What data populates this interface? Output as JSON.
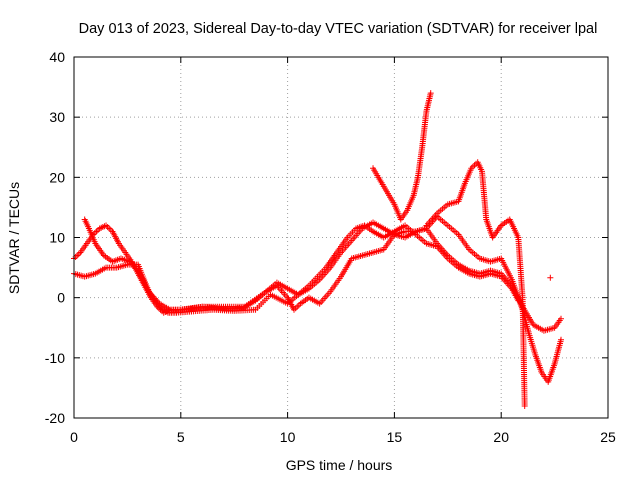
{
  "chart_data": {
    "type": "scatter",
    "title": "Day 013 of 2023, Sidereal Day-to-day VTEC variation (SDTVAR) for receiver lpal",
    "xlabel": "GPS time / hours",
    "ylabel": "SDTVAR / TECUs",
    "xlim": [
      0,
      25
    ],
    "ylim": [
      -20,
      40
    ],
    "x_ticks": [
      "0",
      "5",
      "10",
      "15",
      "20",
      "25"
    ],
    "y_ticks": [
      "-20",
      "-10",
      "0",
      "10",
      "20",
      "30",
      "40"
    ],
    "grid": true,
    "legend": "none",
    "marker": "plus",
    "color": "#ff0000",
    "series": [
      {
        "x": [
          0.0,
          0.3,
          0.6,
          0.9,
          1.2,
          1.5,
          1.8,
          2.1,
          2.4,
          2.7,
          3.0,
          3.3,
          3.6,
          3.9,
          4.2,
          4.5,
          5.0,
          5.5,
          6.0,
          6.5,
          7.0,
          7.5,
          8.0,
          8.5,
          9.0,
          9.5,
          10.0,
          10.5,
          11.0,
          11.5,
          12.0,
          12.5,
          13.0,
          13.5,
          14.0,
          14.5,
          15.0,
          15.5,
          16.0,
          16.5,
          17.0,
          17.5,
          18.0,
          18.5,
          19.0,
          19.5,
          20.0,
          20.5,
          21.0,
          21.3,
          21.6,
          21.9,
          22.2,
          22.5,
          22.8
        ],
        "y": [
          6.5,
          7.5,
          9.0,
          10.5,
          11.5,
          12.0,
          11.0,
          9.0,
          7.5,
          6.0,
          4.0,
          2.0,
          0.0,
          -1.5,
          -2.5,
          -2.0,
          -2.0,
          -1.8,
          -1.5,
          -1.7,
          -1.8,
          -1.9,
          -1.5,
          -0.5,
          1.0,
          2.5,
          1.5,
          0.5,
          1.5,
          3.0,
          5.0,
          7.5,
          9.5,
          11.5,
          12.5,
          11.5,
          10.5,
          10.0,
          11.0,
          11.5,
          13.5,
          12.0,
          10.5,
          8.0,
          6.5,
          6.0,
          6.5,
          3.0,
          -2.0,
          -6.0,
          -9.5,
          -12.5,
          -14.0,
          -11.0,
          -7.0
        ]
      },
      {
        "x": [
          0.0,
          0.5,
          1.0,
          1.5,
          2.0,
          2.5,
          3.0,
          3.5,
          4.0,
          4.5,
          5.0,
          6.0,
          7.0,
          8.0,
          9.0,
          9.5,
          10.0,
          10.3,
          10.6,
          11.0,
          11.5,
          12.0,
          12.5,
          13.0,
          13.5,
          14.0,
          14.5,
          15.0,
          15.5,
          16.0,
          16.5,
          17.0,
          17.5,
          18.0,
          18.5,
          19.0,
          19.5,
          20.0,
          20.5,
          21.0,
          21.5,
          22.0,
          22.5,
          22.8
        ],
        "y": [
          4.0,
          3.5,
          4.0,
          5.0,
          5.0,
          5.5,
          5.5,
          1.0,
          -1.0,
          -2.0,
          -2.0,
          -1.5,
          -1.5,
          -1.5,
          1.0,
          2.0,
          0.0,
          -2.0,
          -1.0,
          0.0,
          -1.0,
          1.0,
          3.5,
          6.5,
          7.0,
          7.5,
          8.0,
          10.5,
          11.0,
          11.0,
          11.5,
          9.0,
          7.0,
          5.5,
          4.5,
          4.0,
          4.5,
          4.0,
          2.0,
          -1.5,
          -4.5,
          -5.5,
          -5.0,
          -3.5
        ]
      },
      {
        "x": [
          0.5,
          0.7,
          1.0,
          1.4,
          1.8,
          2.2,
          2.6,
          3.0,
          3.3,
          3.6,
          4.0,
          4.4,
          4.8,
          5.5,
          6.5,
          7.5,
          8.5,
          9.2,
          10.0,
          10.5,
          11.0,
          11.4,
          11.8,
          12.2,
          12.5,
          12.8,
          13.2,
          13.6,
          14.0,
          14.5,
          15.0,
          15.5,
          16.0,
          16.5,
          17.0,
          17.5,
          18.0,
          18.5,
          19.0,
          19.5,
          20.0,
          20.5,
          20.8
        ],
        "y": [
          13.0,
          11.5,
          9.0,
          7.0,
          6.0,
          6.5,
          6.0,
          4.5,
          2.5,
          0.5,
          -1.5,
          -2.5,
          -2.5,
          -2.3,
          -2.0,
          -2.2,
          -2.0,
          0.5,
          -1.0,
          0.5,
          2.0,
          3.5,
          5.0,
          7.0,
          8.5,
          10.0,
          11.5,
          12.0,
          11.0,
          10.0,
          11.0,
          12.0,
          10.5,
          9.0,
          8.5,
          6.5,
          5.0,
          4.0,
          3.5,
          4.0,
          3.5,
          1.5,
          -0.5
        ]
      },
      {
        "x": [
          14.0,
          14.5,
          15.0,
          15.3,
          15.6,
          15.9,
          16.1,
          16.3,
          16.5,
          16.7
        ],
        "y": [
          21.5,
          18.5,
          15.5,
          13.0,
          14.5,
          17.0,
          20.0,
          25.0,
          31.0,
          34.0
        ]
      },
      {
        "x": [
          16.5,
          17.0,
          17.5,
          18.0,
          18.3,
          18.6,
          18.9,
          19.1,
          19.3,
          19.6,
          20.0,
          20.4,
          20.8,
          21.0,
          21.1
        ],
        "y": [
          12.0,
          14.0,
          15.5,
          16.0,
          19.0,
          21.5,
          22.5,
          21.0,
          13.0,
          10.0,
          12.0,
          13.0,
          10.0,
          0.0,
          -18.0
        ]
      },
      {
        "x": [
          22.3
        ],
        "y": [
          3.3
        ]
      }
    ]
  }
}
